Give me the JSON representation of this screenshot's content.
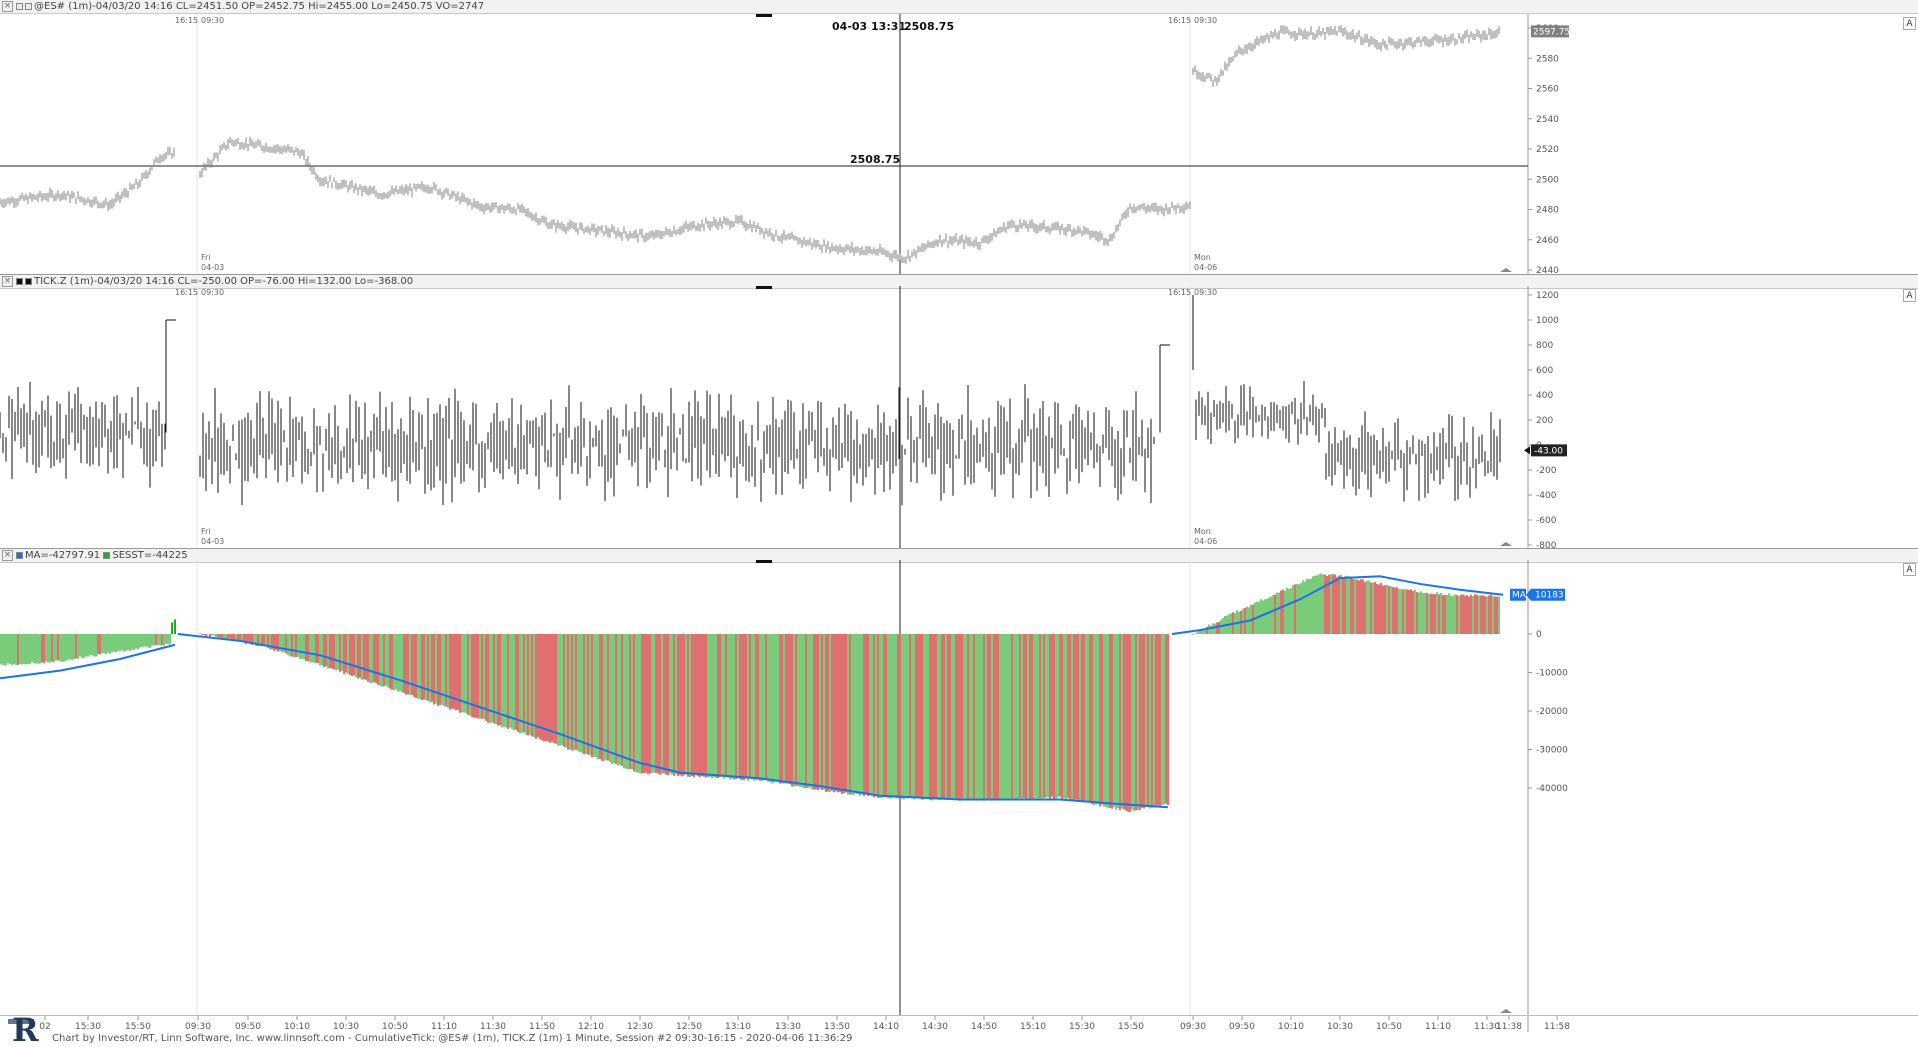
{
  "panes": {
    "price": {
      "title": "@ES# (1m)-04/03/20 14:16 CL=2451.50 OP=2452.75 Hi=2455.00 Lo=2450.75 VO=2747",
      "y_ticks": [
        "2600",
        "2580",
        "2560",
        "2540",
        "2520",
        "2500",
        "2480",
        "2460",
        "2440"
      ],
      "last_value": "2597.75",
      "crosshair_label": "04-03 13:31",
      "crosshair_value": "2508.75",
      "crosshair_hvalue": "2508.75",
      "labels": {
        "t1615a": "16:15",
        "t0930a": "09:30",
        "t1615b": "16:15",
        "t0930b": "09:30",
        "fri": "Fri",
        "d0403": "04-03",
        "mon": "Mon",
        "d0406": "04-06"
      },
      "corner": "A",
      "price_color": "#808080"
    },
    "tick": {
      "title": "TICK.Z (1m)-04/03/20 14:16 CL=-250.00 OP=-76.00 Hi=132.00 Lo=-368.00",
      "y_ticks": [
        "1200",
        "1000",
        "800",
        "600",
        "400",
        "200",
        "0",
        "-200",
        "-400",
        "-600",
        "-800"
      ],
      "last_value": "-43.00",
      "labels": {
        "t1615a": "16:15",
        "t0930a": "09:30",
        "t1615b": "16:15",
        "t0930b": "09:30",
        "fri": "Fri",
        "d0403": "04-03",
        "mon": "Mon",
        "d0406": "04-06"
      },
      "corner": "A"
    },
    "cumtick": {
      "legend_ma": "MA=-42797.91",
      "legend_sesst": "SESST=-44225",
      "y_ticks": [
        "0",
        "-10000",
        "-20000",
        "-30000",
        "-40000"
      ],
      "ma_tag": "MA",
      "ma_value": "10183",
      "corner": "A",
      "colors": {
        "up": "#22aa22",
        "down": "#cc1111",
        "ma": "#1a73e8"
      }
    }
  },
  "x_axis": {
    "labels": [
      "02",
      "15:30",
      "15:50",
      "09:30",
      "09:50",
      "10:10",
      "10:30",
      "10:50",
      "11:10",
      "11:30",
      "11:50",
      "12:10",
      "12:30",
      "12:50",
      "13:10",
      "13:30",
      "13:50",
      "14:10",
      "14:30",
      "14:50",
      "15:10",
      "15:30",
      "15:50",
      "09:30",
      "09:50",
      "10:10",
      "10:30",
      "10:50",
      "11:10",
      "11:30",
      "11:38",
      "11:58"
    ]
  },
  "footer": "Chart by Investor/RT, Linn Software, Inc. www.linnsoft.com - CumulativeTick: @ES# (1m), TICK.Z (1m) 1 Minute, Session #2 09:30-16:15 - 2020-04-06 11:36:29"
}
